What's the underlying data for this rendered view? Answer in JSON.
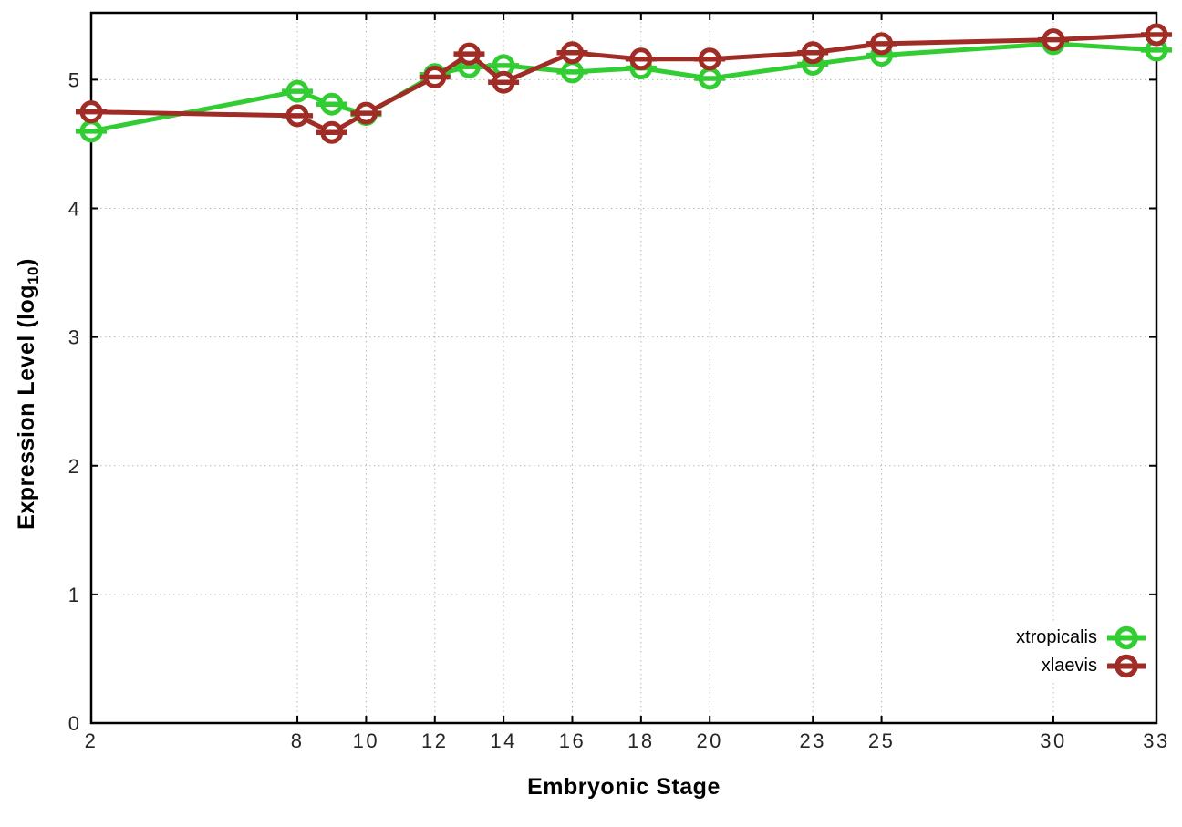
{
  "chart_data": {
    "type": "line",
    "title": "",
    "xlabel": "Embryonic Stage",
    "ylabel": "Expression Level (log10)",
    "ylabel_parts": {
      "prefix": "Expression Level (log",
      "sub": "10",
      "suffix": ")"
    },
    "xlim": [
      2,
      33
    ],
    "ylim": [
      0,
      5.52
    ],
    "grid": true,
    "legend_position": "bottom-right-inside",
    "marker": "open-circle-with-horizontal-error-bar",
    "x": [
      2,
      8,
      9,
      10,
      12,
      13,
      14,
      16,
      18,
      20,
      23,
      25,
      30,
      33
    ],
    "x_tick_values": [
      2,
      8,
      10,
      12,
      14,
      16,
      18,
      20,
      23,
      25,
      30,
      33
    ],
    "x_tick_labels": [
      "2",
      "8",
      "10",
      "12",
      "14",
      "16",
      "18",
      "20",
      "23",
      "25",
      "30",
      "33"
    ],
    "y_tick_values": [
      0,
      1,
      2,
      3,
      4,
      5
    ],
    "y_tick_labels": [
      "0",
      "1",
      "2",
      "3",
      "4",
      "5"
    ],
    "series": [
      {
        "name": "xtropicalis",
        "color": "#32cd32",
        "values": [
          4.6,
          4.91,
          4.81,
          4.73,
          5.04,
          5.1,
          5.11,
          5.06,
          5.09,
          5.01,
          5.12,
          5.19,
          5.28,
          5.23
        ]
      },
      {
        "name": "xlaevis",
        "color": "#a02c26",
        "values": [
          4.75,
          4.72,
          4.59,
          4.74,
          5.02,
          5.2,
          4.98,
          5.21,
          5.16,
          5.16,
          5.21,
          5.28,
          5.31,
          5.35
        ]
      }
    ]
  },
  "colors": {
    "background": "#ffffff",
    "axis": "#000000",
    "grid": "#b9b9b9",
    "tick_label": "#262626"
  }
}
